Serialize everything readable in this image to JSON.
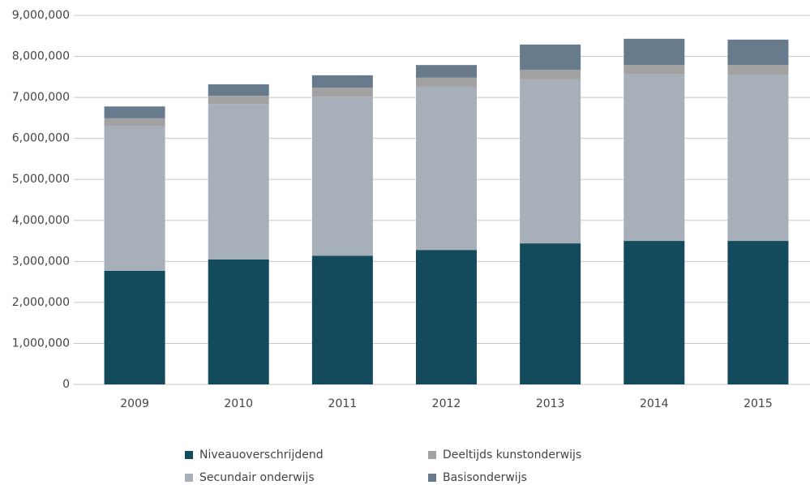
{
  "chart_data": {
    "type": "stacked_bar",
    "categories": [
      "2009",
      "2010",
      "2011",
      "2012",
      "2013",
      "2014",
      "2015"
    ],
    "series": [
      {
        "name": "Niveauoverschrijdend",
        "color": "#134a5c",
        "values": [
          2770000,
          3050000,
          3140000,
          3280000,
          3440000,
          3500000,
          3500000
        ]
      },
      {
        "name": "Secundair onderwijs",
        "color": "#a7afb9",
        "values": [
          3540000,
          3790000,
          3880000,
          3980000,
          4000000,
          4060000,
          4050000
        ]
      },
      {
        "name": "Deeltijds kunstonderwijs",
        "color": "#a2a2a2",
        "values": [
          180000,
          200000,
          220000,
          220000,
          230000,
          230000,
          240000
        ]
      },
      {
        "name": "Basisonderwijs",
        "color": "#687b8d",
        "values": [
          290000,
          280000,
          300000,
          310000,
          620000,
          640000,
          620000
        ]
      }
    ],
    "ylim": [
      0,
      9000000
    ],
    "yticks": [
      0,
      {
        "value": 1000000,
        "label": "1,000,000"
      },
      {
        "value": 2000000,
        "label": "2,000,000"
      },
      {
        "value": 3000000,
        "label": "3,000,000"
      },
      {
        "value": 4000000,
        "label": "4,000,000"
      },
      {
        "value": 5000000,
        "label": "5,000,000"
      },
      {
        "value": 6000000,
        "label": "6,000,000"
      },
      {
        "value": 7000000,
        "label": "7,000,000"
      },
      {
        "value": 8000000,
        "label": "8,000,000"
      },
      {
        "value": 9000000,
        "label": "9,000,000"
      }
    ],
    "grid": true
  }
}
